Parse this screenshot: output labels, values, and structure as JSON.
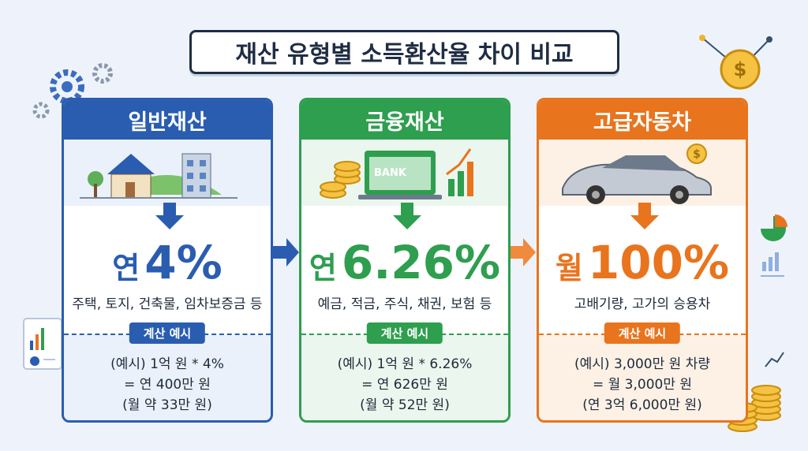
{
  "title": "재산 유형별 소득환산율 차이 비교",
  "bank_label": "BANK",
  "cards": [
    {
      "header": "일반재산",
      "rate_prefix": "연",
      "rate": "4%",
      "description": "주택, 토지, 건축물, 임차보증금 등",
      "example_label": "계산 예시",
      "example_lines": [
        "(예시) 1억 원 * 4%",
        "= 연 400만 원",
        "(월 약 33만 원)"
      ]
    },
    {
      "header": "금융재산",
      "rate_prefix": "연",
      "rate": "6.26%",
      "description": "예금, 적금, 주식, 채권, 보험 등",
      "example_label": "계산 예시",
      "example_lines": [
        "(예시) 1억 원 * 6.26%",
        "= 연 626만 원",
        "(월 약 52만 원)"
      ]
    },
    {
      "header": "고급자동차",
      "rate_prefix": "월",
      "rate": "100%",
      "description": "고배기량, 고가의 승용차",
      "example_label": "계산 예시",
      "example_lines": [
        "(예시) 3,000만 원 차량",
        "= 월 3,000만 원",
        "(연 3억 6,000만 원)"
      ]
    }
  ]
}
